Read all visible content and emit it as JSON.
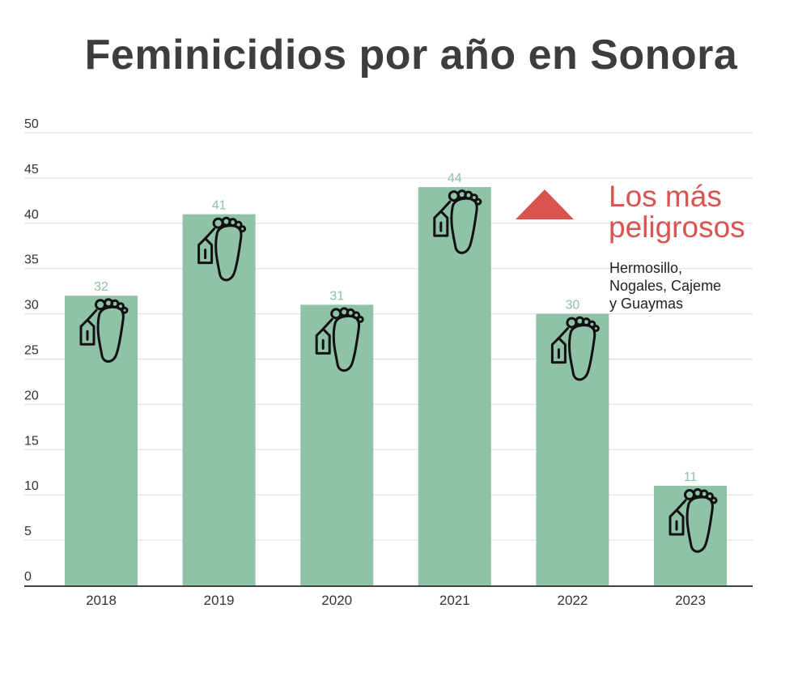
{
  "colors": {
    "bar": "#8fc2a6",
    "data_label": "#8dc2a5",
    "title": "#3d3d3d",
    "callout": "#d9534f",
    "grid": "#dddddd",
    "axis": "#444444"
  },
  "icons": {
    "bar_marker": "foot-with-toe-tag-icon",
    "callout_marker": "up-triangle-icon"
  },
  "callout": {
    "heading": "Los más peligrosos",
    "note": "Hermosillo,\nNogales, Cajeme\n y Guaymas"
  },
  "chart_data": {
    "type": "bar",
    "title": "Feminicidios por año en Sonora",
    "xlabel": "",
    "ylabel": "",
    "categories": [
      "2018",
      "2019",
      "2020",
      "2021",
      "2022",
      "2023"
    ],
    "values": [
      32,
      41,
      31,
      44,
      30,
      11
    ],
    "ylim": [
      0,
      50
    ],
    "yticks": [
      0,
      5,
      10,
      15,
      20,
      25,
      30,
      35,
      40,
      45,
      50
    ],
    "grid": true,
    "data_labels": true
  }
}
